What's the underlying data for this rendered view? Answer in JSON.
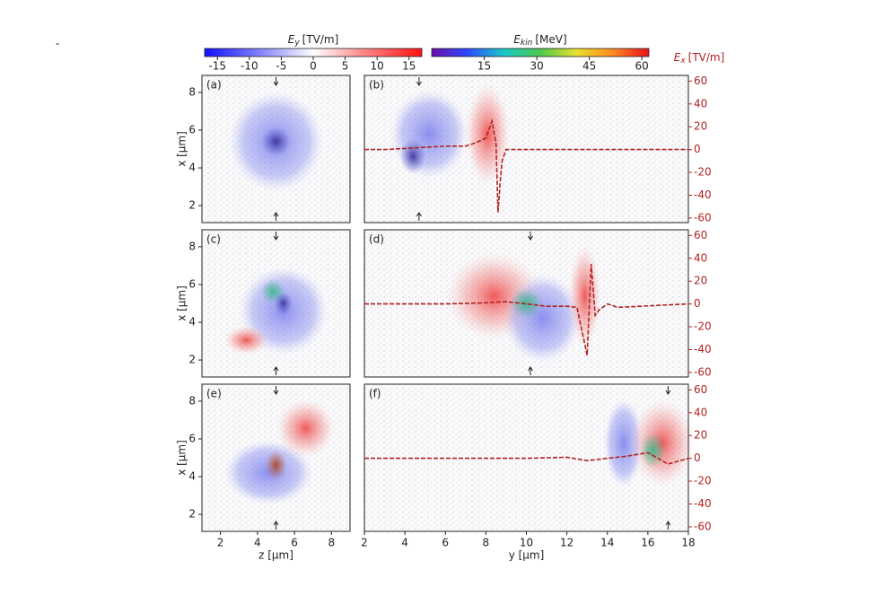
{
  "corner_mark": "-",
  "chart_data": [
    {
      "type": "colorbar",
      "label": {
        "symbol": "E",
        "subscript": "y",
        "unit": "[TV/m]"
      },
      "xlim": [
        -17,
        17
      ],
      "xticks": [
        -15,
        -10,
        -5,
        0,
        5,
        10,
        15
      ],
      "colors": [
        "#1010ff",
        "#8080ff",
        "#ffffff",
        "#ff8080",
        "#ff1010"
      ]
    },
    {
      "type": "colorbar",
      "label": {
        "symbol": "E",
        "subscript": "kin",
        "unit": "[MeV]"
      },
      "xlim": [
        0,
        62
      ],
      "xticks": [
        15,
        30,
        45,
        60
      ],
      "colors": [
        "#6a0dad",
        "#2b4bff",
        "#18c8c8",
        "#4cc84c",
        "#e8e030",
        "#ff8a20",
        "#e8101a"
      ]
    },
    {
      "type": "image",
      "label": "(a)",
      "xlim": [
        1,
        9
      ],
      "ylim": [
        1.1,
        8.9
      ],
      "yticks": [
        2,
        4,
        6,
        8
      ],
      "ylabel": "x [µm]",
      "arrows": [
        5
      ]
    },
    {
      "type": "image-lineout",
      "label": "(b)",
      "xlim": [
        2,
        18
      ],
      "ylim": [
        1.1,
        8.9
      ],
      "y2lim": [
        -64,
        65
      ],
      "y2ticks": [
        -60,
        -40,
        -20,
        0,
        20,
        40,
        60
      ],
      "y2label": {
        "symbol": "E",
        "subscript": "x",
        "unit": "[TV/m]"
      },
      "arrows": [
        4.7
      ],
      "color": "#b22222",
      "x": [
        2,
        3,
        4,
        5,
        6,
        7,
        7.5,
        8,
        8.3,
        8.5,
        8.6,
        8.7,
        8.8,
        9,
        9.5,
        10,
        18
      ],
      "values": [
        0,
        0,
        1,
        2,
        3,
        3,
        6,
        10,
        25,
        5,
        -55,
        -30,
        -10,
        0,
        0,
        0,
        0
      ]
    },
    {
      "type": "image",
      "label": "(c)",
      "xlim": [
        1,
        9
      ],
      "ylim": [
        1.1,
        8.9
      ],
      "yticks": [
        2,
        4,
        6,
        8
      ],
      "ylabel": "x [µm]",
      "arrows": [
        5
      ]
    },
    {
      "type": "image-lineout",
      "label": "(d)",
      "xlim": [
        2,
        18
      ],
      "ylim": [
        1.1,
        8.9
      ],
      "y2lim": [
        -64,
        65
      ],
      "y2ticks": [
        -60,
        -40,
        -20,
        0,
        20,
        40,
        60
      ],
      "arrows": [
        10.2
      ],
      "color": "#b22222",
      "x": [
        2,
        4,
        6,
        8,
        9,
        10,
        11,
        12,
        12.5,
        13,
        13.2,
        13.4,
        13.6,
        14,
        14.5,
        18
      ],
      "values": [
        0,
        0,
        0,
        1,
        2,
        0,
        -2,
        -2,
        -3,
        -45,
        35,
        -10,
        -5,
        0,
        -3,
        0
      ]
    },
    {
      "type": "image",
      "label": "(e)",
      "xlim": [
        1,
        9
      ],
      "ylim": [
        1.1,
        8.9
      ],
      "xticks": [
        2,
        4,
        6,
        8
      ],
      "yticks": [
        2,
        4,
        6,
        8
      ],
      "xlabel": "z [µm]",
      "ylabel": "x [µm]",
      "arrows": [
        5
      ]
    },
    {
      "type": "image-lineout",
      "label": "(f)",
      "xlim": [
        2,
        18
      ],
      "ylim": [
        1.1,
        8.9
      ],
      "xticks": [
        2,
        4,
        6,
        8,
        10,
        12,
        14,
        16,
        18
      ],
      "xlabel": "y [µm]",
      "y2lim": [
        -64,
        65
      ],
      "y2ticks": [
        -60,
        -40,
        -20,
        0,
        20,
        40,
        60
      ],
      "arrows": [
        17
      ],
      "color": "#b22222",
      "x": [
        2,
        6,
        10,
        12,
        13,
        14,
        15,
        16,
        16.5,
        17,
        18
      ],
      "values": [
        0,
        0,
        0,
        1,
        -2,
        0,
        2,
        5,
        0,
        -5,
        0
      ]
    }
  ]
}
